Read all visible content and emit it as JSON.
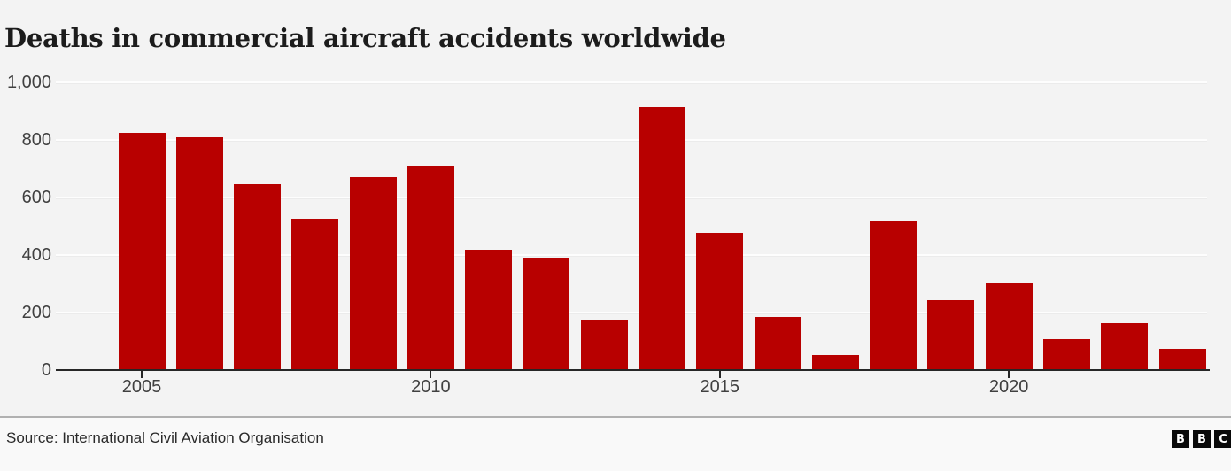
{
  "title": "Deaths in commercial aircraft accidents worldwide",
  "source_line": "Source: International Civil Aviation Organisation",
  "logo": {
    "letters": [
      "B",
      "B",
      "C"
    ]
  },
  "colors": {
    "bar": "#b80000",
    "background": "#f3f3f3",
    "footer_background": "#f9f9f9",
    "axis_line": "#262626",
    "gridline": "#fdfdfd",
    "tick_text": "#404040",
    "title_text": "#1c1c1c",
    "source_text": "#2a2a2a",
    "divider": "#b0b0b0",
    "logo_background": "#0a0a0a",
    "logo_text": "#ffffff"
  },
  "chart_data": {
    "type": "bar",
    "title": "Deaths in commercial aircraft accidents worldwide",
    "xlabel": "",
    "ylabel": "",
    "categories": [
      2005,
      2006,
      2007,
      2008,
      2009,
      2010,
      2011,
      2012,
      2013,
      2014,
      2015,
      2016,
      2017,
      2018,
      2019,
      2020,
      2021,
      2022,
      2023
    ],
    "values": [
      822,
      805,
      643,
      523,
      667,
      707,
      414,
      388,
      173,
      911,
      474,
      182,
      50,
      514,
      239,
      299,
      104,
      160,
      72
    ],
    "ylim": [
      0,
      1000
    ],
    "y_ticks": [
      0,
      200,
      400,
      600,
      800,
      1000
    ],
    "y_tick_labels": [
      "0",
      "200",
      "400",
      "600",
      "800",
      "1,000"
    ],
    "x_tick_years": [
      2005,
      2010,
      2015,
      2020
    ],
    "x_tick_labels": [
      "2005",
      "2010",
      "2015",
      "2020"
    ],
    "grid": true,
    "legend": false,
    "bar_color": "#b80000"
  }
}
